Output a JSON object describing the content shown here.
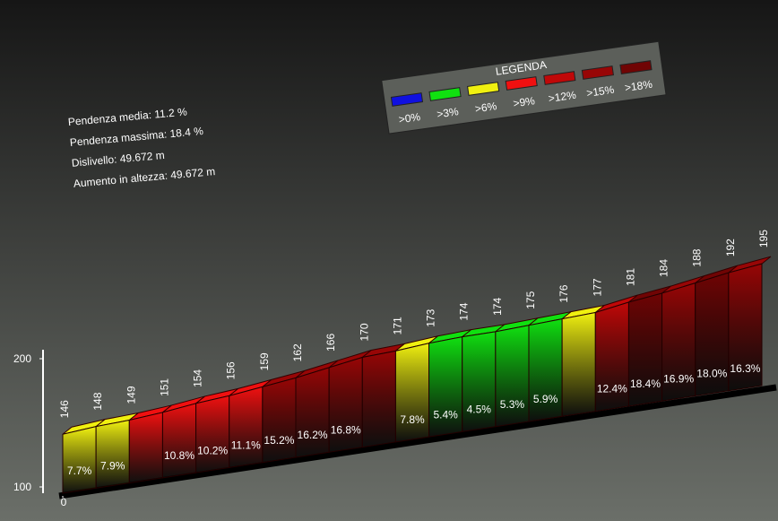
{
  "chart_data": {
    "type": "climb-profile",
    "stats": [
      "Pendenza media: 11.2 %",
      "Pendenza massima: 18.4 %",
      "Dislivello: 49.672 m",
      "Aumento in altezza: 49.672 m"
    ],
    "legend_title": "LEGENDA",
    "legend": [
      {
        "name": ">0%",
        "color": "#1010e0"
      },
      {
        "name": ">3%",
        "color": "#10e010"
      },
      {
        "name": ">6%",
        "color": "#f0f010"
      },
      {
        "name": ">9%",
        "color": "#f01010"
      },
      {
        "name": ">12%",
        "color": "#c00808"
      },
      {
        "name": ">15%",
        "color": "#980606"
      },
      {
        "name": ">18%",
        "color": "#700404"
      }
    ],
    "elevations": [
      146,
      148,
      149,
      151,
      154,
      156,
      159,
      162,
      166,
      170,
      171,
      173,
      174,
      174,
      175,
      176,
      177,
      181,
      184,
      188,
      192,
      195
    ],
    "gradients": [
      7.7,
      7.9,
      null,
      10.8,
      10.2,
      11.1,
      15.2,
      16.2,
      16.8,
      null,
      7.8,
      5.4,
      4.5,
      5.3,
      5.9,
      null,
      12.4,
      18.4,
      16.9,
      18.0,
      16.3
    ],
    "gradient_labels": [
      "7.7%",
      "7.9%",
      null,
      "10.8%",
      "10.2%",
      "11.1%",
      "15.2%",
      "16.2%",
      "16.8%",
      null,
      "7.8%",
      "5.4%",
      "4.5%",
      "5.3%",
      "5.9%",
      null,
      "12.4%",
      "18.4%",
      "16.9%",
      "18.0%",
      "16.3%"
    ],
    "colors": [
      "#f0f010",
      "#f0f010",
      "#f01010",
      "#f01010",
      "#f01010",
      "#f01010",
      "#980606",
      "#980606",
      "#980606",
      "#980606",
      "#f0f010",
      "#10e010",
      "#10e010",
      "#10e010",
      "#10e010",
      "#f0f010",
      "#c00808",
      "#700404",
      "#980606",
      "#700404",
      "#980606"
    ],
    "ylim": [
      100,
      200
    ],
    "yticks": [
      100,
      200
    ],
    "xticks": [
      0
    ]
  }
}
